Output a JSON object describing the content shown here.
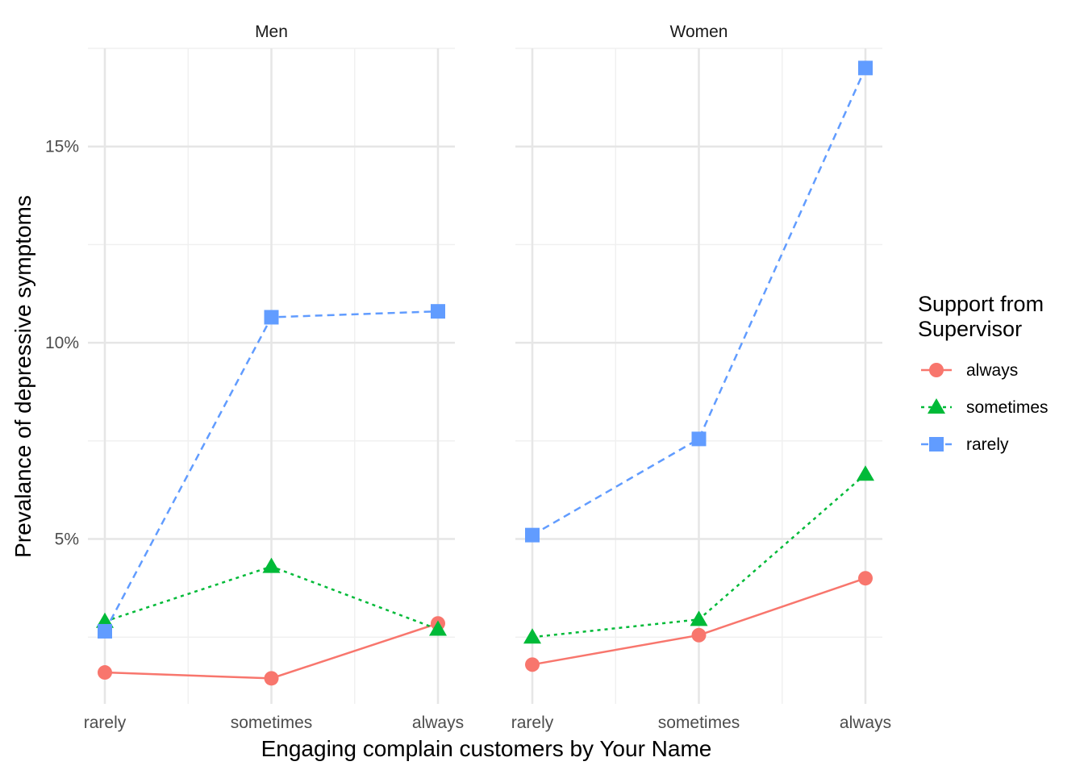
{
  "chart_data": {
    "type": "line",
    "facet_by": "sex",
    "panels": [
      "Men",
      "Women"
    ],
    "categories": [
      "rarely",
      "sometimes",
      "always"
    ],
    "xlabel": "Engaging complain customers by Your Name",
    "ylabel": "Prevalance of depressive symptoms",
    "ylim": [
      0.8,
      17.5
    ],
    "yticks": [
      5,
      10,
      15
    ],
    "ytick_labels": [
      "5%",
      "10%",
      "15%"
    ],
    "grid": true,
    "legend": {
      "title_lines": [
        "Support from",
        "Supervisor"
      ],
      "position": "right"
    },
    "series": [
      {
        "name": "always",
        "color": "#F8766D",
        "marker": "circle",
        "linestyle": "solid",
        "values": {
          "Men": [
            1.6,
            1.45,
            2.85
          ],
          "Women": [
            1.8,
            2.55,
            4.0
          ]
        }
      },
      {
        "name": "sometimes",
        "color": "#00BA38",
        "marker": "triangle",
        "linestyle": "dotted",
        "values": {
          "Men": [
            2.9,
            4.3,
            2.7
          ],
          "Women": [
            2.5,
            2.95,
            6.65
          ]
        }
      },
      {
        "name": "rarely",
        "color": "#619CFF",
        "marker": "square",
        "linestyle": "dashed",
        "values": {
          "Men": [
            2.65,
            10.65,
            10.8
          ],
          "Women": [
            5.1,
            7.55,
            17.0
          ]
        }
      }
    ]
  }
}
